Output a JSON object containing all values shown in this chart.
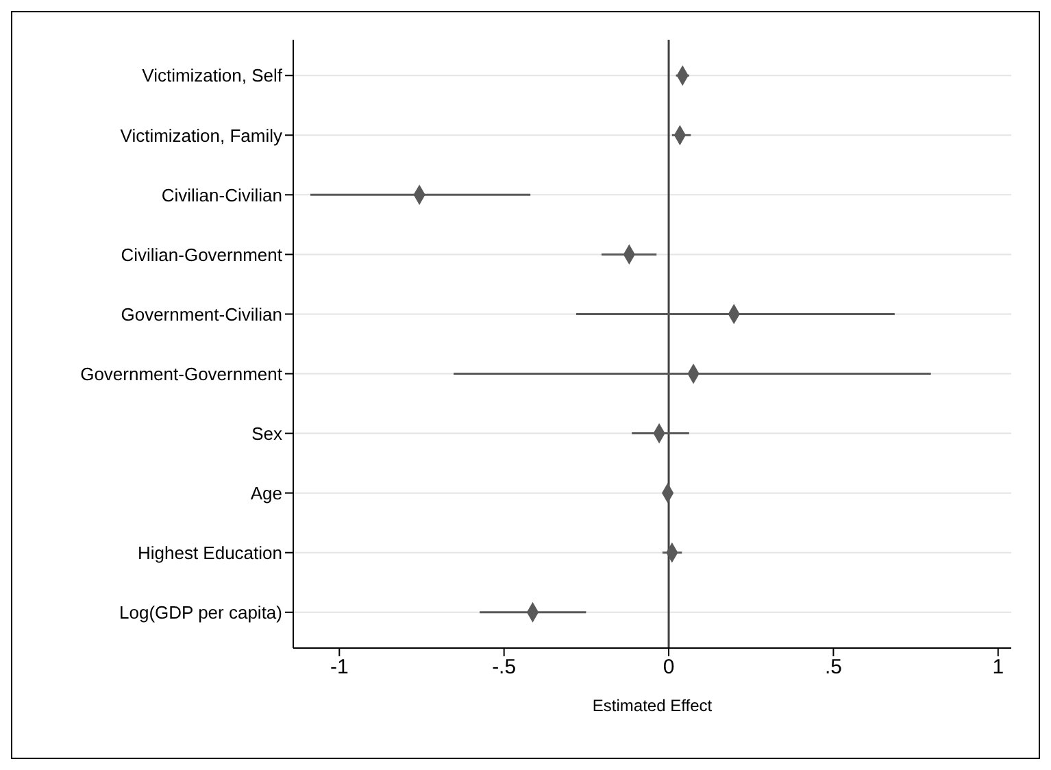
{
  "chart_data": {
    "type": "scatter",
    "xlabel": "Estimated Effect",
    "orientation": "horizontal",
    "categories": [
      "Victimization, Self",
      "Victimization, Family",
      "Civilian-Civilian",
      "Civilian-Government",
      "Government-Civilian",
      "Government-Government",
      "Sex",
      "Age",
      "Highest Education",
      "Log(GDP per capita)"
    ],
    "values": [
      0.042,
      0.034,
      -0.757,
      -0.12,
      0.198,
      0.075,
      -0.029,
      -0.003,
      0.01,
      -0.413
    ],
    "errors": [
      0.02,
      [
        0.01,
        0.067
      ],
      [
        -1.088,
        -0.42
      ],
      [
        -0.204,
        -0.037
      ],
      [
        -0.281,
        0.686
      ],
      [
        -0.653,
        0.796
      ],
      [
        -0.112,
        0.062
      ],
      null,
      [
        -0.019,
        0.04
      ],
      [
        -0.574,
        -0.251
      ]
    ],
    "color": "#595959",
    "marker": "diamond",
    "grid": "y",
    "xlim": [
      -1.14,
      1.04
    ],
    "xticks": [
      {
        "value": -1,
        "label": "-1"
      },
      {
        "value": -0.5,
        "label": "-.5"
      },
      0,
      {
        "value": 0.5,
        "label": ".5"
      },
      1
    ],
    "ref_lines": [
      {
        "axis": "x",
        "value": 0,
        "color": "#404040"
      }
    ]
  }
}
